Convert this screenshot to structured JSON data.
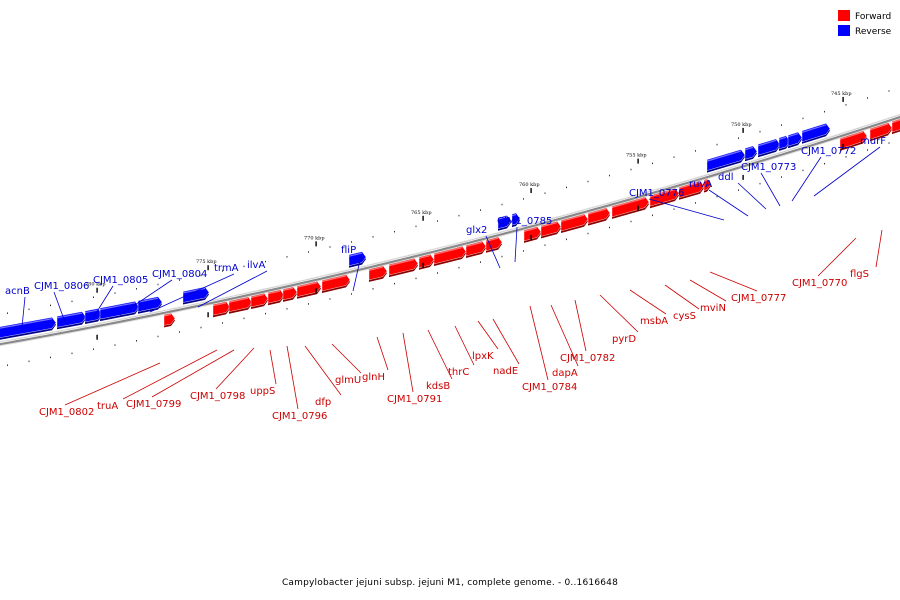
{
  "legend": {
    "forward": {
      "label": "Forward",
      "color": "#ff0000"
    },
    "reverse": {
      "label": "Reverse",
      "color": "#0000ff"
    }
  },
  "caption": "Campylobacter jejuni subsp. jejuni M1, complete genome. - 0..1616648",
  "backbone_color": "#888888",
  "ticks": [
    "745 kbp",
    "750 kbp",
    "755 kbp",
    "760 kbp",
    "765 kbp",
    "770 kbp",
    "775 kbp",
    "780 kbp"
  ],
  "reverse_genes": [
    "acnB",
    "CJM1_0806",
    "CJM1_0805",
    "CJM1_0804",
    "trmA",
    "ilvA",
    "fliP",
    "glx2",
    "CJM1_0785",
    "CJM1_0776",
    "ruvA",
    "ddl",
    "CJM1_0773",
    "CJM1_0772",
    "murF"
  ],
  "forward_genes": [
    "CJM1_0802",
    "truA",
    "CJM1_0799",
    "CJM1_0798",
    "uppS",
    "CJM1_0796",
    "dfp",
    "glmU",
    "glnH",
    "CJM1_0791",
    "kdsB",
    "thrC",
    "lpxK",
    "nadE",
    "CJM1_0784",
    "dapA",
    "CJM1_0782",
    "pyrD",
    "msbA",
    "cysS",
    "mviN",
    "CJM1_0777",
    "CJM1_0770",
    "flgS"
  ]
}
